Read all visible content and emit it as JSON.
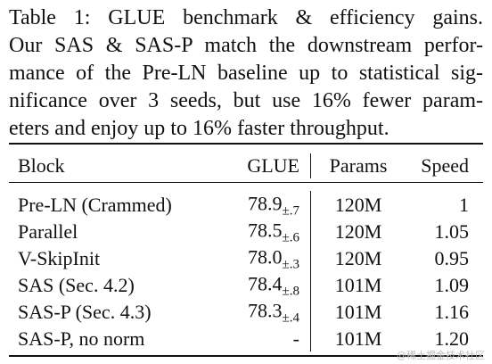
{
  "caption": {
    "lines": [
      "Table 1: GLUE benchmark & efficiency gains.",
      "Our SAS & SAS-P match the downstream perfor-",
      "mance of the Pre-LN baseline up to statistical sig-",
      "nificance over 3 seeds, but use 16% fewer param-",
      "eters and enjoy up to 16% faster throughput."
    ]
  },
  "table": {
    "header": {
      "block": "Block",
      "glue": "GLUE",
      "params": "Params",
      "speed": "Speed"
    },
    "rows": [
      {
        "block": "Pre-LN (Crammed)",
        "glue": {
          "value": "78.9",
          "std": "±.7"
        },
        "params": "120M",
        "speed": "1"
      },
      {
        "block": "Parallel",
        "glue": {
          "value": "78.5",
          "std": "±.6"
        },
        "params": "120M",
        "speed": "1.05"
      },
      {
        "block": "V-SkipInit",
        "glue": {
          "value": "78.0",
          "std": "±.3"
        },
        "params": "120M",
        "speed": "0.95"
      },
      {
        "block": "SAS (Sec. 4.2)",
        "glue": {
          "value": "78.4",
          "std": "±.8"
        },
        "params": "101M",
        "speed": "1.09"
      },
      {
        "block": "SAS-P (Sec. 4.3)",
        "glue": {
          "value": "78.3",
          "std": "±.4"
        },
        "params": "101M",
        "speed": "1.16"
      },
      {
        "block": "SAS-P, no norm",
        "glue": {
          "value": "-"
        },
        "params": "101M",
        "speed": "1.20"
      }
    ]
  },
  "watermark": "@稀土掘金技术社区"
}
